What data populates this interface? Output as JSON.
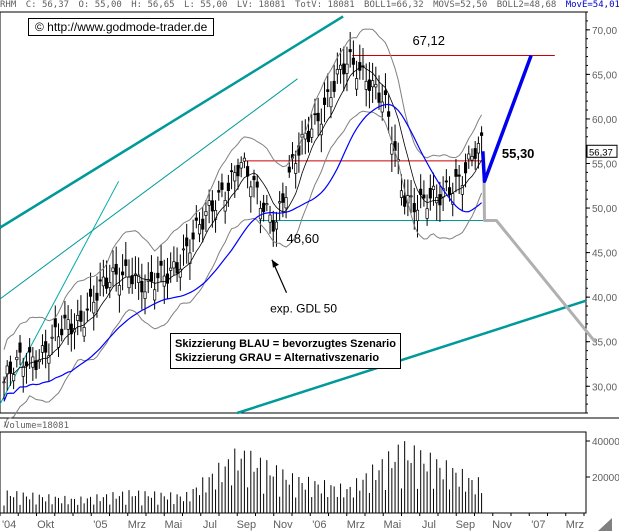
{
  "header": {
    "symbol": "RHM",
    "close": "C: 56,37",
    "open": "O: 55,00",
    "high": "H: 56,65",
    "low": "L: 55,00",
    "volume": "LV: 18081",
    "total_volume": "TotV: 18081",
    "boll1": "BOLL1=66,32",
    "movs": "MOVS=52,50",
    "boll2": "BOLL2=48,68",
    "move": "MovE=54,01"
  },
  "url_label": "© http://www.godmode-trader.de",
  "notes": {
    "blue": "Skizzierung BLAU = bevorzugtes Szenario",
    "gray": "Skizzierung GRAU = Alternativszenario"
  },
  "annotations": {
    "resistance": "67,12",
    "mid": "55,30",
    "support": "48,60",
    "gdl": "exp. GDL 50",
    "last_price": "56,37"
  },
  "volume_label": "Volume=18081",
  "colors": {
    "price_bar": "#000000",
    "bollinger": "#808080",
    "ema": "#0000ff",
    "sma": "#000000",
    "trend_channel": "#009999",
    "resistance_line": "#cc0000",
    "support_line": "#009999",
    "scenario_blue": "#0000ee",
    "scenario_gray": "#b0b0b0",
    "volume": "#000000"
  },
  "chart_data": [
    {
      "type": "candlestick",
      "title": "",
      "ylabel": "",
      "ylim": [
        27,
        72
      ],
      "y_ticks": [
        "30,00",
        "35,00",
        "40,00",
        "45,00",
        "50,00",
        "55,00",
        "60,00",
        "65,00",
        "70,00"
      ],
      "x_ticks": [
        "'04",
        "Okt",
        "'05",
        "Mrz",
        "Mai",
        "Jul",
        "Sep",
        "Nov",
        "'06",
        "Mrz",
        "Mai",
        "Jul",
        "Sep",
        "Nov",
        "'07",
        "Mrz"
      ],
      "month_span": [
        "2004-08",
        "2007-04"
      ],
      "close_path": [
        [
          "2004-08",
          30.5
        ],
        [
          "2004-09",
          32.5
        ],
        [
          "2004-10",
          34.0
        ],
        [
          "2004-11",
          35.5
        ],
        [
          "2004-12",
          37.0
        ],
        [
          "2005-01",
          40.5
        ],
        [
          "2005-02",
          41.5
        ],
        [
          "2005-03",
          43.5
        ],
        [
          "2005-04",
          40.5
        ],
        [
          "2005-05",
          42.5
        ],
        [
          "2005-06",
          45.5
        ],
        [
          "2005-07",
          48.0
        ],
        [
          "2005-08",
          52.0
        ],
        [
          "2005-09",
          55.0
        ],
        [
          "2005-10",
          51.0
        ],
        [
          "2005-11",
          49.0
        ],
        [
          "2005-12",
          54.5
        ],
        [
          "2006-01",
          59.5
        ],
        [
          "2006-02",
          63.0
        ],
        [
          "2006-03",
          66.0
        ],
        [
          "2006-04",
          65.5
        ],
        [
          "2006-05",
          61.5
        ],
        [
          "2006-06",
          51.5
        ],
        [
          "2006-07",
          51.0
        ],
        [
          "2006-08",
          50.5
        ],
        [
          "2006-09",
          53.5
        ],
        [
          "2006-10",
          56.37
        ]
      ],
      "indicators": {
        "boll_upper": 66.32,
        "moving_average": 52.5,
        "boll_lower": 48.68,
        "ema": 54.01
      },
      "levels": [
        {
          "label": "67,12",
          "value": 67.12
        },
        {
          "label": "55,30",
          "value": 55.3
        },
        {
          "label": "48,60",
          "value": 48.6
        }
      ],
      "scenarios": {
        "blue": [
          [
            "2006-10",
            56.37
          ],
          [
            "2006-10",
            53.0
          ],
          [
            "2007-01",
            67.12
          ]
        ],
        "gray": [
          [
            "2006-10",
            56.37
          ],
          [
            "2006-10",
            48.6
          ],
          [
            "2006-11",
            48.6
          ],
          [
            "2007-04",
            35.0
          ]
        ]
      }
    },
    {
      "type": "bar",
      "title": "Volume=18081",
      "ylim": [
        0,
        45000
      ],
      "y_ticks": [
        "20000",
        "40000"
      ],
      "volume_profile": [
        [
          "2004-08",
          12000
        ],
        [
          "2004-12",
          8000
        ],
        [
          "2005-03",
          12000
        ],
        [
          "2005-06",
          10000
        ],
        [
          "2005-09",
          35000
        ],
        [
          "2005-12",
          20000
        ],
        [
          "2006-03",
          14000
        ],
        [
          "2006-06",
          38000
        ],
        [
          "2006-09",
          24000
        ],
        [
          "2006-10",
          18081
        ]
      ]
    }
  ]
}
